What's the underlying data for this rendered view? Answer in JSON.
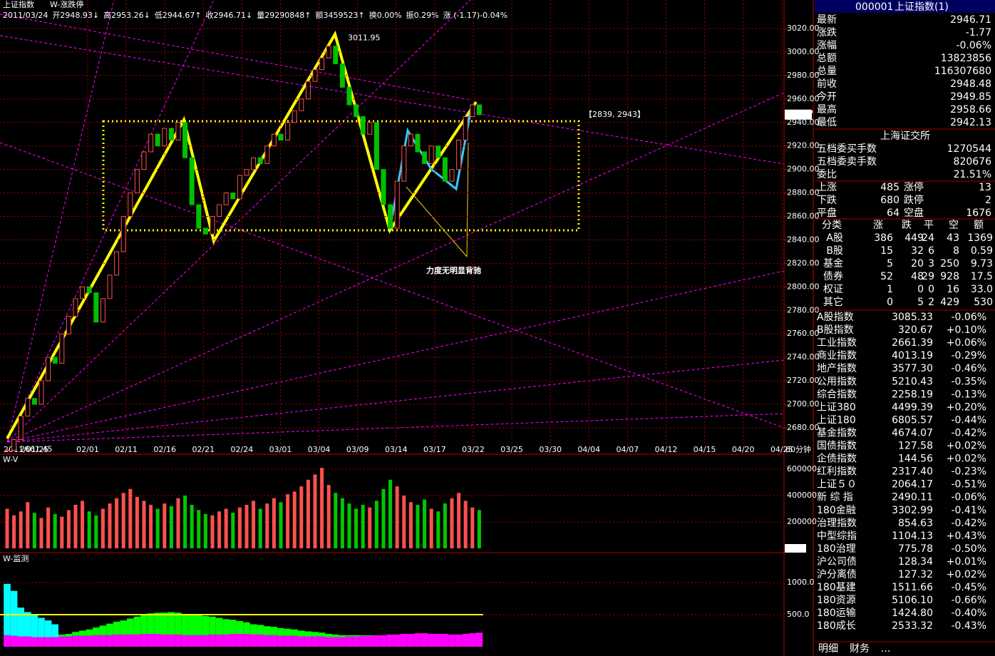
{
  "header": {
    "symbol": "上证指数",
    "indicator": "W-涨跌停",
    "items": [
      {
        "text": "2011/03/24",
        "color": "#ffffff"
      },
      {
        "text": "开2948.93↓",
        "color": "#ff5050"
      },
      {
        "text": "高2953.26↓",
        "color": "#ff5050"
      },
      {
        "text": "低2944.67↑",
        "color": "#00e000"
      },
      {
        "text": "收2946.71↓",
        "color": "#00e000"
      },
      {
        "text": "量29290848↑",
        "color": "#ffffff"
      },
      {
        "text": "额3459523↑",
        "color": "#ffffff"
      },
      {
        "text": "换0.00%",
        "color": "#ffffff"
      },
      {
        "text": "振0.29%",
        "color": "#ffffff"
      },
      {
        "text": "涨 (-1.17)-0.04%",
        "color": "#00e000"
      }
    ]
  },
  "price_chart": {
    "ylim": [
      2664.8,
      3044.3
    ],
    "yticks": [
      {
        "value": 3020,
        "label": "3020.00"
      },
      {
        "value": 3000,
        "label": "3000.00"
      },
      {
        "value": 2980,
        "label": "2980.00"
      },
      {
        "value": 2960,
        "label": "2960.00"
      },
      {
        "value": 2940,
        "label": "2940.00"
      },
      {
        "value": 2920,
        "label": "2920.00"
      },
      {
        "value": 2900,
        "label": "2900.00"
      },
      {
        "value": 2880,
        "label": "2880.00"
      },
      {
        "value": 2860,
        "label": "2860.00"
      },
      {
        "value": 2840,
        "label": "2840.00"
      },
      {
        "value": 2820,
        "label": "2820.00"
      },
      {
        "value": 2800,
        "label": "2800.00"
      },
      {
        "value": 2780,
        "label": "2780.00"
      },
      {
        "value": 2760,
        "label": "2760.00"
      },
      {
        "value": 2740,
        "label": "2740.00"
      },
      {
        "value": 2720,
        "label": "2720.00"
      },
      {
        "value": 2700,
        "label": "2700.00"
      },
      {
        "value": 2680,
        "label": "2680.00"
      }
    ],
    "x_labels": [
      "2011/01/25",
      "02/01",
      "02/11",
      "02/16",
      "02/21",
      "02/24",
      "03/01",
      "03/04",
      "03/09",
      "03/14",
      "03/17",
      "03/22",
      "03/25",
      "03/30",
      "04/04",
      "04/07",
      "04/12",
      "04/15",
      "04/20",
      "04/25"
    ],
    "period": "60分钟",
    "closes": [
      2661,
      2670,
      2690,
      2705,
      2700,
      2720,
      2740,
      2735,
      2760,
      2775,
      2790,
      2800,
      2795,
      2770,
      2790,
      2810,
      2830,
      2860,
      2880,
      2900,
      2915,
      2930,
      2920,
      2935,
      2925,
      2940,
      2910,
      2870,
      2850,
      2845,
      2860,
      2870,
      2880,
      2875,
      2895,
      2900,
      2910,
      2905,
      2920,
      2930,
      2925,
      2940,
      2950,
      2960,
      2975,
      2985,
      2995,
      3005,
      2990,
      2970,
      2955,
      2945,
      2930,
      2940,
      2900,
      2870,
      2850,
      2890,
      2920,
      2930,
      2915,
      2905,
      2920,
      2910,
      2890,
      2900,
      2925,
      2945,
      2955,
      2946.71
    ],
    "high_label": {
      "value": 3011.95,
      "label": "3011.95"
    },
    "low_label": {
      "value": 2661.45,
      "label": "2661.45"
    },
    "last_tag": {
      "value": 2946.71,
      "label": "2946.7"
    },
    "range_label": "【2839, 2943】",
    "note": "力度无明显背驰"
  },
  "volume_chart": {
    "title": "W-V",
    "unit": "X100",
    "ylim": [
      0,
      697300
    ],
    "yticks": [
      200000,
      400000,
      600000
    ],
    "values": [
      300000,
      250000,
      280000,
      350000,
      270000,
      230000,
      310000,
      260000,
      240000,
      290000,
      330000,
      360000,
      280000,
      250000,
      300000,
      340000,
      380000,
      420000,
      450000,
      390000,
      360000,
      330000,
      300000,
      340000,
      320000,
      380000,
      400000,
      330000,
      290000,
      260000,
      250000,
      280000,
      300000,
      270000,
      310000,
      330000,
      360000,
      300000,
      340000,
      380000,
      350000,
      410000,
      430000,
      470000,
      520000,
      560000,
      610000,
      480000,
      420000,
      380000,
      340000,
      300000,
      330000,
      310000,
      360000,
      450000,
      520000,
      470000,
      400000,
      350000,
      330000,
      370000,
      300000,
      280000,
      340000,
      380000,
      420000,
      360000,
      310000,
      290000
    ]
  },
  "monitor_chart": {
    "title": "W-监测",
    "ylim": [
      0,
      1411
    ],
    "yticks": [
      {
        "value": 500,
        "label": "500.0"
      },
      {
        "value": 1000,
        "label": "1000.0"
      }
    ],
    "reference": 500,
    "series": [
      {
        "color": "#ff00ff",
        "values": [
          180,
          170,
          160,
          160,
          150,
          150,
          150,
          150,
          160,
          160,
          170,
          170,
          170,
          180,
          180,
          180,
          190,
          190,
          190,
          190,
          200,
          200,
          200,
          190,
          190,
          190,
          180,
          180,
          180,
          180,
          190,
          190,
          190,
          200,
          200,
          200,
          190,
          190,
          180,
          180,
          170,
          170,
          170,
          160,
          160,
          160,
          160,
          150,
          150,
          150,
          160,
          160,
          170,
          170,
          180,
          180,
          190,
          190,
          200,
          200,
          210,
          210,
          200,
          200,
          200,
          190,
          190,
          200,
          210,
          220
        ]
      },
      {
        "color": "#00ffff",
        "values": [
          800,
          700,
          450,
          380,
          340,
          300,
          260,
          200,
          0,
          0,
          0,
          0,
          0,
          0,
          0,
          0,
          0,
          0,
          0,
          0,
          0,
          0,
          0,
          0,
          0,
          0,
          0,
          0,
          0,
          0,
          0,
          0,
          0,
          0,
          0,
          0,
          0,
          0,
          0,
          0,
          0,
          0,
          0,
          0,
          0,
          0,
          0,
          0,
          0,
          0,
          0,
          0,
          0,
          0,
          0,
          0,
          0,
          0,
          0,
          0,
          0,
          0,
          0,
          0,
          0,
          0,
          0,
          0,
          0,
          0
        ]
      },
      {
        "color": "#00ff00",
        "values": [
          0,
          0,
          0,
          0,
          0,
          0,
          0,
          0,
          30,
          40,
          60,
          80,
          100,
          120,
          150,
          180,
          200,
          220,
          250,
          280,
          300,
          320,
          330,
          340,
          350,
          340,
          330,
          320,
          310,
          300,
          280,
          260,
          240,
          220,
          200,
          180,
          160,
          150,
          140,
          130,
          120,
          110,
          100,
          90,
          80,
          70,
          60,
          50,
          40,
          30,
          20,
          20,
          10,
          10,
          0,
          0,
          0,
          0,
          0,
          0,
          0,
          0,
          0,
          0,
          0,
          0,
          0,
          0,
          0,
          0
        ]
      }
    ]
  },
  "panel": {
    "code": "000001",
    "name": "上证指数(1)",
    "quote": [
      [
        "最新",
        "2946.71",
        "#00ff00"
      ],
      [
        "涨跌",
        "-1.77",
        "#00ff00"
      ],
      [
        "涨幅",
        "-0.06%",
        "#00ff00"
      ],
      [
        "总额",
        "13823856",
        "#ffffff"
      ],
      [
        "总量",
        "116307680",
        "#ffffff"
      ],
      [
        "前收",
        "2948.48",
        "#ffffff"
      ],
      [
        "今开",
        "2949.85",
        "#ff5050"
      ],
      [
        "最高",
        "2958.66",
        "#ff5050"
      ],
      [
        "最低",
        "2942.13",
        "#00ff00"
      ]
    ],
    "exchange": "上海证交所",
    "orders": [
      [
        "五档委买手数",
        "1270544"
      ],
      [
        "五档委卖手数",
        "820676"
      ],
      [
        "委比",
        "21.51%"
      ]
    ],
    "breadth": [
      [
        "上涨",
        "485",
        "涨停",
        "13",
        "#ff5050"
      ],
      [
        "下跌",
        "680",
        "跌停",
        "2",
        "#00ff00"
      ],
      [
        "平盘",
        "64",
        "空盘",
        "1676",
        "#ffffff"
      ]
    ],
    "table": {
      "header": [
        "分类",
        "涨",
        "跌",
        "平",
        "空",
        "额"
      ],
      "rows": [
        [
          "A股",
          "386",
          "449",
          "24",
          "43",
          "1369"
        ],
        [
          "B股",
          "15",
          "32",
          "6",
          "8",
          "0.59"
        ],
        [
          "基金",
          "5",
          "20",
          "3",
          "250",
          "9.73"
        ],
        [
          "债券",
          "52",
          "48",
          "29",
          "928",
          "17.5"
        ],
        [
          "权证",
          "1",
          "0",
          "0",
          "16",
          "33.0"
        ],
        [
          "其它",
          "0",
          "5",
          "2",
          "429",
          "530"
        ]
      ]
    },
    "indices": [
      [
        "A股指数",
        "3085.33",
        "-0.06%"
      ],
      [
        "B股指数",
        "320.67",
        "+0.10%"
      ],
      [
        "工业指数",
        "2661.39",
        "+0.06%"
      ],
      [
        "商业指数",
        "4013.19",
        "-0.29%"
      ],
      [
        "地产指数",
        "3577.30",
        "-0.46%"
      ],
      [
        "公用指数",
        "5210.43",
        "-0.35%"
      ],
      [
        "综合指数",
        "2258.19",
        "-0.13%"
      ],
      [
        "上证380",
        "4499.39",
        "+0.20%"
      ],
      [
        "上证180",
        "6805.57",
        "-0.44%"
      ],
      [
        "基金指数",
        "4674.07",
        "-0.42%"
      ],
      [
        "国债指数",
        "127.58",
        "+0.02%"
      ],
      [
        "企债指数",
        "144.56",
        "+0.02%"
      ],
      [
        "红利指数",
        "2317.40",
        "-0.23%"
      ],
      [
        "上证５０",
        "2064.17",
        "-0.51%"
      ],
      [
        "新 综 指",
        "2490.11",
        "-0.06%"
      ],
      [
        "180金融",
        "3302.99",
        "-0.41%"
      ],
      [
        "治理指数",
        "854.63",
        "-0.42%"
      ],
      [
        "中型综指",
        "1104.13",
        "+0.43%"
      ],
      [
        "180治理",
        "775.78",
        "-0.50%"
      ],
      [
        "沪公司债",
        "128.34",
        "+0.01%"
      ],
      [
        "沪分离债",
        "127.32",
        "+0.02%"
      ],
      [
        "180基建",
        "1511.66",
        "-0.45%"
      ],
      [
        "180资源",
        "5106.10",
        "-0.66%"
      ],
      [
        "180运输",
        "1424.80",
        "-0.40%"
      ],
      [
        "180成长",
        "2533.32",
        "-0.43%"
      ]
    ],
    "tabs": [
      "明细",
      "财务",
      "..."
    ]
  }
}
